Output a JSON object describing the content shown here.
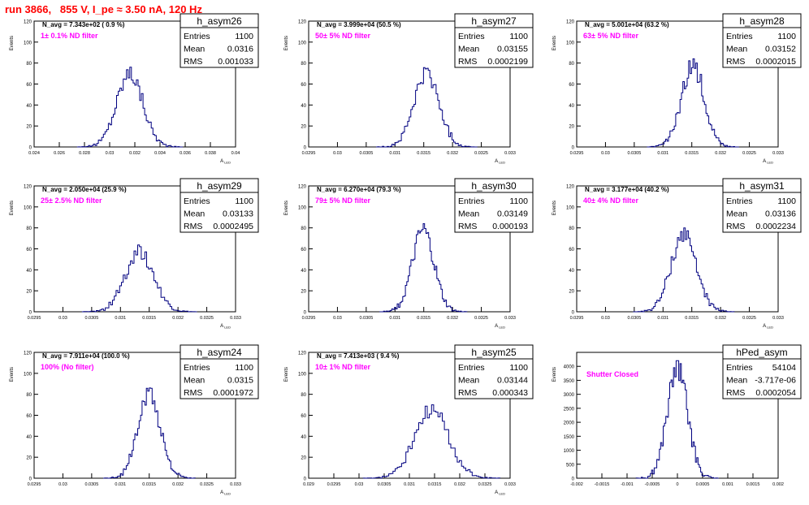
{
  "page": {
    "title": "run 3866,   855 V, I_pe ≈ 3.50 nA, 120 Hz",
    "colors": {
      "title": "#ff0000",
      "hist": "#000080",
      "annotation": "#ff00ff",
      "frame": "#000000"
    }
  },
  "chart_data": [
    {
      "type": "histogram",
      "name": "h_asym26",
      "stats": {
        "entries_label": "Entries",
        "entries": "1100",
        "mean_label": "Mean",
        "mean": "0.0316",
        "rms_label": "RMS",
        "rms": "0.001033"
      },
      "navg": "N_avg = 7.343e+02 ( 0.9 %)",
      "note": "1± 0.1% ND filter",
      "ylabel": "Events",
      "xlabel": "A",
      "xlim": [
        0.024,
        0.04
      ],
      "ylim": [
        0,
        120
      ],
      "xticks": [
        "0.024",
        "0.026",
        "0.028",
        "0.03",
        "0.032",
        "0.034",
        "0.036",
        "0.038",
        "0.04"
      ],
      "yticks": [
        "0",
        "20",
        "40",
        "60",
        "80",
        "100",
        "120"
      ],
      "peak_x": 0.0316,
      "sigma": 0.00105,
      "peak_count": 76
    },
    {
      "type": "histogram",
      "name": "h_asym27",
      "stats": {
        "entries_label": "Entries",
        "entries": "1100",
        "mean_label": "Mean",
        "mean": "0.03155",
        "rms_label": "RMS",
        "rms": "0.0002199"
      },
      "navg": "N_avg = 3.999e+04 (50.5 %)",
      "note": "50± 5% ND filter",
      "ylabel": "Events",
      "xlabel": "A",
      "xlim": [
        0.0295,
        0.033
      ],
      "ylim": [
        0,
        120
      ],
      "xticks": [
        "0.0295",
        "0.03",
        "0.0305",
        "0.031",
        "0.0315",
        "0.032",
        "0.0325",
        "0.033"
      ],
      "yticks": [
        "0",
        "20",
        "40",
        "60",
        "80",
        "100",
        "120"
      ],
      "peak_x": 0.03155,
      "sigma": 0.00022,
      "peak_count": 75
    },
    {
      "type": "histogram",
      "name": "h_asym28",
      "stats": {
        "entries_label": "Entries",
        "entries": "1100",
        "mean_label": "Mean",
        "mean": "0.03152",
        "rms_label": "RMS",
        "rms": "0.0002015"
      },
      "navg": "N_avg = 5.001e+04 (63.2 %)",
      "note": "63± 5% ND filter",
      "ylabel": "Events",
      "xlabel": "A",
      "xlim": [
        0.0295,
        0.033
      ],
      "ylim": [
        0,
        120
      ],
      "xticks": [
        "0.0295",
        "0.03",
        "0.0305",
        "0.031",
        "0.0315",
        "0.032",
        "0.0325",
        "0.033"
      ],
      "yticks": [
        "0",
        "20",
        "40",
        "60",
        "80",
        "100",
        "120"
      ],
      "peak_x": 0.03152,
      "sigma": 0.0002,
      "peak_count": 84
    },
    {
      "type": "histogram",
      "name": "h_asym29",
      "stats": {
        "entries_label": "Entries",
        "entries": "1100",
        "mean_label": "Mean",
        "mean": "0.03133",
        "rms_label": "RMS",
        "rms": "0.0002495"
      },
      "navg": "N_avg = 2.050e+04 (25.9 %)",
      "note": "25± 2.5% ND filter",
      "ylabel": "Events",
      "xlabel": "A",
      "xlim": [
        0.0295,
        0.033
      ],
      "ylim": [
        0,
        120
      ],
      "xticks": [
        "0.0295",
        "0.03",
        "0.0305",
        "0.031",
        "0.0315",
        "0.032",
        "0.0325",
        "0.033"
      ],
      "yticks": [
        "0",
        "20",
        "40",
        "60",
        "80",
        "100",
        "120"
      ],
      "peak_x": 0.03133,
      "sigma": 0.00025,
      "peak_count": 62
    },
    {
      "type": "histogram",
      "name": "h_asym30",
      "stats": {
        "entries_label": "Entries",
        "entries": "1100",
        "mean_label": "Mean",
        "mean": "0.03149",
        "rms_label": "RMS",
        "rms": "0.000193"
      },
      "navg": "N_avg = 6.270e+04 (79.3 %)",
      "note": "79± 5% ND filter",
      "ylabel": "Events",
      "xlabel": "A",
      "xlim": [
        0.0295,
        0.033
      ],
      "ylim": [
        0,
        120
      ],
      "xticks": [
        "0.0295",
        "0.03",
        "0.0305",
        "0.031",
        "0.0315",
        "0.032",
        "0.0325",
        "0.033"
      ],
      "yticks": [
        "0",
        "20",
        "40",
        "60",
        "80",
        "100",
        "120"
      ],
      "peak_x": 0.03149,
      "sigma": 0.00019,
      "peak_count": 84
    },
    {
      "type": "histogram",
      "name": "h_asym31",
      "stats": {
        "entries_label": "Entries",
        "entries": "1100",
        "mean_label": "Mean",
        "mean": "0.03136",
        "rms_label": "RMS",
        "rms": "0.0002234"
      },
      "navg": "N_avg = 3.177e+04 (40.2 %)",
      "note": "40± 4% ND filter",
      "ylabel": "Events",
      "xlabel": "A",
      "xlim": [
        0.0295,
        0.033
      ],
      "ylim": [
        0,
        120
      ],
      "xticks": [
        "0.0295",
        "0.03",
        "0.0305",
        "0.031",
        "0.0315",
        "0.032",
        "0.0325",
        "0.033"
      ],
      "yticks": [
        "0",
        "20",
        "40",
        "60",
        "80",
        "100",
        "120"
      ],
      "peak_x": 0.03136,
      "sigma": 0.00022,
      "peak_count": 80
    },
    {
      "type": "histogram",
      "name": "h_asym24",
      "stats": {
        "entries_label": "Entries",
        "entries": "1100",
        "mean_label": "Mean",
        "mean": "0.0315",
        "rms_label": "RMS",
        "rms": "0.0001972"
      },
      "navg": "N_avg = 7.911e+04 (100.0 %)",
      "note": "100% (No filter)",
      "ylabel": "Events",
      "xlabel": "A",
      "xlim": [
        0.0295,
        0.033
      ],
      "ylim": [
        0,
        120
      ],
      "xticks": [
        "0.0295",
        "0.03",
        "0.0305",
        "0.031",
        "0.0315",
        "0.032",
        "0.0325",
        "0.033"
      ],
      "yticks": [
        "0",
        "20",
        "40",
        "60",
        "80",
        "100",
        "120"
      ],
      "peak_x": 0.0315,
      "sigma": 0.0002,
      "peak_count": 86
    },
    {
      "type": "histogram",
      "name": "h_asym25",
      "stats": {
        "entries_label": "Entries",
        "entries": "1100",
        "mean_label": "Mean",
        "mean": "0.03144",
        "rms_label": "RMS",
        "rms": "0.000343"
      },
      "navg": "N_avg = 7.413e+03 ( 9.4 %)",
      "note": "10± 1% ND filter",
      "ylabel": "Events",
      "xlabel": "A",
      "xlim": [
        0.029,
        0.033
      ],
      "ylim": [
        0,
        120
      ],
      "xticks": [
        "0.029",
        "0.0295",
        "0.03",
        "0.0305",
        "0.031",
        "0.0315",
        "0.032",
        "0.0325",
        "0.033"
      ],
      "yticks": [
        "0",
        "20",
        "40",
        "60",
        "80",
        "100",
        "120"
      ],
      "peak_x": 0.03144,
      "sigma": 0.00034,
      "peak_count": 70
    },
    {
      "type": "histogram",
      "name": "hPed_asym",
      "stats": {
        "entries_label": "Entries",
        "entries": "54104",
        "mean_label": "Mean",
        "mean": "-3.717e-06",
        "rms_label": "RMS",
        "rms": "0.0002054"
      },
      "navg": "",
      "note": "Shutter Closed",
      "ylabel": "Events",
      "xlabel": "",
      "xlim": [
        -0.002,
        0.002
      ],
      "ylim": [
        0,
        4500
      ],
      "xticks": [
        "-0.002",
        "-0.0015",
        "-0.001",
        "-0.0005",
        "0",
        "0.0005",
        "0.001",
        "0.0015",
        "0.002"
      ],
      "yticks": [
        "0",
        "500",
        "1000",
        "1500",
        "2000",
        "2500",
        "3000",
        "3500",
        "4000"
      ],
      "peak_x": 0.0,
      "sigma": 0.000205,
      "peak_count": 4200
    }
  ]
}
